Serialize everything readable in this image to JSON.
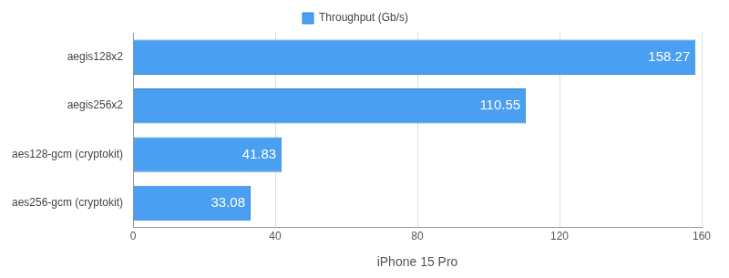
{
  "chart_data": {
    "type": "bar",
    "orientation": "horizontal",
    "categories": [
      "aegis128x2",
      "aegis256x2",
      "aes128-gcm (cryptokit)",
      "aes256-gcm (cryptokit)"
    ],
    "series": [
      {
        "name": "Throughput (Gb/s)",
        "color": "#4a9ff0",
        "values": [
          158.27,
          110.55,
          41.83,
          33.08
        ]
      }
    ],
    "x_label": "iPhone 15 Pro",
    "xlim": [
      0,
      160
    ],
    "xticks": [
      0,
      40,
      80,
      120,
      160
    ],
    "grid": true,
    "legend": "top",
    "data_labels": true
  }
}
